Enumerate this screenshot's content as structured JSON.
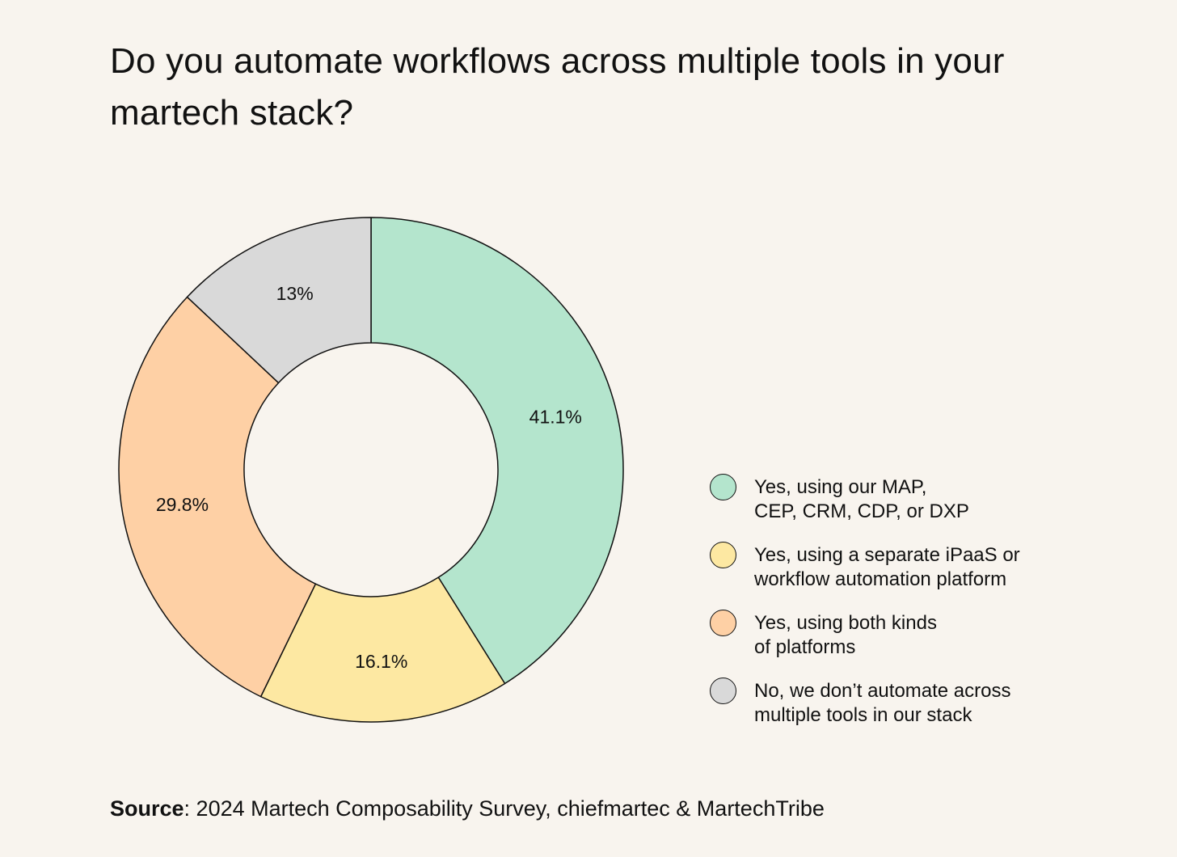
{
  "title": "Do you automate workflows across multiple tools in your martech stack?",
  "chart_data": {
    "type": "pie",
    "subtype": "donut",
    "title": "Do you automate workflows across multiple tools in your martech stack?",
    "categories": [
      "Yes, using our MAP,\nCEP, CRM, CDP, or DXP",
      "Yes, using a separate iPaaS or\nworkflow automation platform",
      "Yes, using both kinds\nof platforms",
      "No, we don’t automate across\nmultiple tools in our stack"
    ],
    "values": [
      41.1,
      16.1,
      29.8,
      13
    ],
    "value_labels": [
      "41.1%",
      "16.1%",
      "29.8%",
      "13%"
    ],
    "colors": [
      "#b4e5cd",
      "#fde8a2",
      "#fed0a5",
      "#d9d9d9"
    ],
    "legend_position": "right"
  },
  "source": {
    "label": "Source",
    "text": ": 2024 Martech Composability Survey, chiefmartec & MartechTribe"
  }
}
